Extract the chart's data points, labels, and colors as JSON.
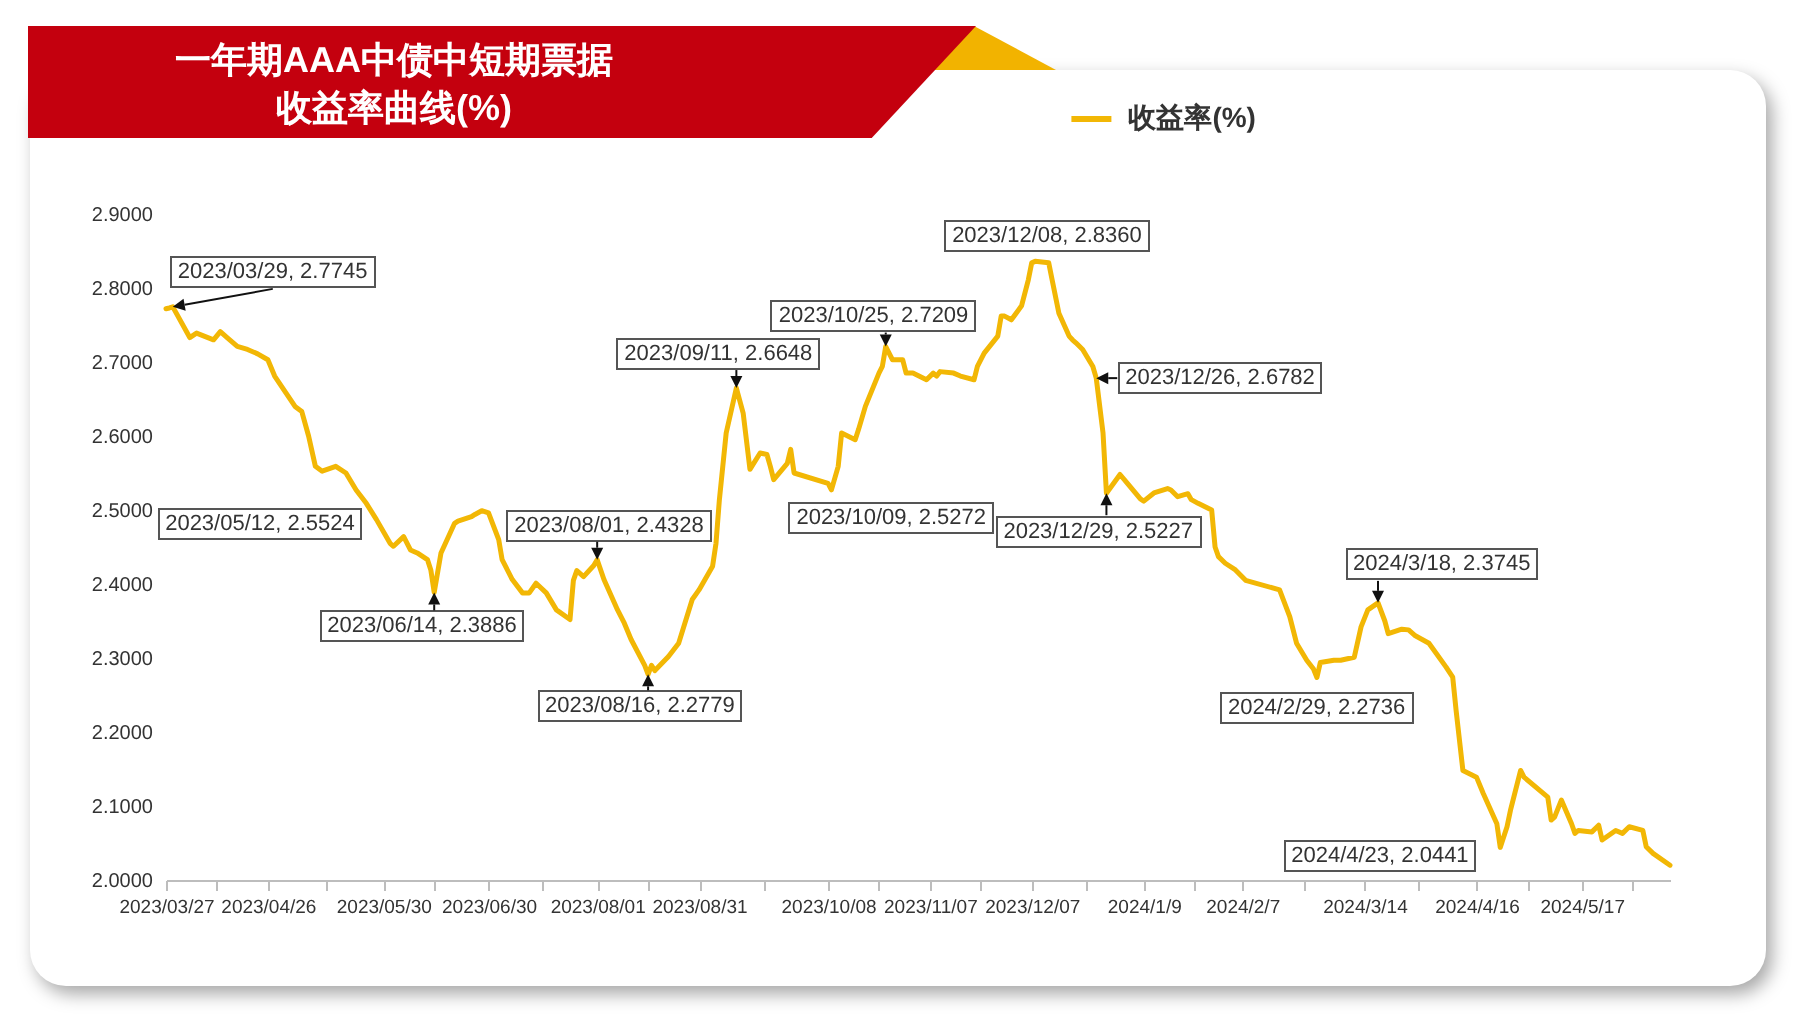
{
  "chart_data": {
    "type": "line",
    "title": "一年期AAA中债中短期票据收益率曲线(%)",
    "x": [
      "2023-03-27",
      "2023-03-28",
      "2023-03-29",
      "2023-04-03",
      "2023-04-05",
      "2023-04-10",
      "2023-04-12",
      "2023-04-14",
      "2023-04-17",
      "2023-04-20",
      "2023-04-23",
      "2023-04-26",
      "2023-04-28",
      "2023-05-04",
      "2023-05-06",
      "2023-05-08",
      "2023-05-10",
      "2023-05-12",
      "2023-05-16",
      "2023-05-19",
      "2023-05-22",
      "2023-05-25",
      "2023-05-28",
      "2023-06-01",
      "2023-06-02",
      "2023-06-05",
      "2023-06-07",
      "2023-06-09",
      "2023-06-12",
      "2023-06-13",
      "2023-06-14",
      "2023-06-16",
      "2023-06-20",
      "2023-06-21",
      "2023-06-25",
      "2023-06-26",
      "2023-06-28",
      "2023-06-30",
      "2023-07-03",
      "2023-07-04",
      "2023-07-07",
      "2023-07-10",
      "2023-07-12",
      "2023-07-14",
      "2023-07-17",
      "2023-07-20",
      "2023-07-24",
      "2023-07-25",
      "2023-07-26",
      "2023-07-28",
      "2023-07-31",
      "2023-08-01",
      "2023-08-03",
      "2023-08-07",
      "2023-08-09",
      "2023-08-11",
      "2023-08-15",
      "2023-08-16",
      "2023-08-17",
      "2023-08-18",
      "2023-08-22",
      "2023-08-25",
      "2023-08-29",
      "2023-08-31",
      "2023-09-04",
      "2023-09-05",
      "2023-09-06",
      "2023-09-08",
      "2023-09-11",
      "2023-09-13",
      "2023-09-15",
      "2023-09-18",
      "2023-09-20",
      "2023-09-21",
      "2023-09-22",
      "2023-09-26",
      "2023-09-27",
      "2023-09-28",
      "2023-10-08",
      "2023-10-09",
      "2023-10-11",
      "2023-10-12",
      "2023-10-16",
      "2023-10-17",
      "2023-10-19",
      "2023-10-23",
      "2023-10-24",
      "2023-10-25",
      "2023-10-27",
      "2023-10-30",
      "2023-10-31",
      "2023-11-02",
      "2023-11-06",
      "2023-11-08",
      "2023-11-09",
      "2023-11-10",
      "2023-11-14",
      "2023-11-16",
      "2023-11-20",
      "2023-11-21",
      "2023-11-23",
      "2023-11-27",
      "2023-11-28",
      "2023-11-29",
      "2023-12-01",
      "2023-12-04",
      "2023-12-06",
      "2023-12-07",
      "2023-12-08",
      "2023-12-12",
      "2023-12-13",
      "2023-12-15",
      "2023-12-18",
      "2023-12-19",
      "2023-12-20",
      "2023-12-22",
      "2023-12-25",
      "2023-12-26",
      "2023-12-28",
      "2023-12-29",
      "2024-01-02",
      "2024-01-04",
      "2024-01-08",
      "2024-01-09",
      "2024-01-12",
      "2024-01-16",
      "2024-01-17",
      "2024-01-19",
      "2024-01-22",
      "2024-01-23",
      "2024-01-25",
      "2024-01-29",
      "2024-01-30",
      "2024-01-31",
      "2024-02-02",
      "2024-02-05",
      "2024-02-08",
      "2024-02-18",
      "2024-02-21",
      "2024-02-23",
      "2024-02-26",
      "2024-02-28",
      "2024-02-29",
      "2024-03-01",
      "2024-03-05",
      "2024-03-07",
      "2024-03-11",
      "2024-03-13",
      "2024-03-15",
      "2024-03-18",
      "2024-03-20",
      "2024-03-21",
      "2024-03-25",
      "2024-03-27",
      "2024-03-29",
      "2024-04-02",
      "2024-04-07",
      "2024-04-09",
      "2024-04-10",
      "2024-04-12",
      "2024-04-16",
      "2024-04-18",
      "2024-04-22",
      "2024-04-23",
      "2024-04-25",
      "2024-04-26",
      "2024-04-29",
      "2024-04-30",
      "2024-05-07",
      "2024-05-08",
      "2024-05-09",
      "2024-05-11",
      "2024-05-14",
      "2024-05-15",
      "2024-05-16",
      "2024-05-20",
      "2024-05-22",
      "2024-05-23",
      "2024-05-27",
      "2024-05-29",
      "2024-05-31",
      "2024-06-04",
      "2024-06-05",
      "2024-06-07",
      "2024-06-12"
    ],
    "series": [
      {
        "name": "收益率(%)",
        "color": "#f2b705",
        "values": [
          2.772,
          2.773,
          2.7745,
          2.733,
          2.739,
          2.73,
          2.741,
          2.733,
          2.721,
          2.717,
          2.711,
          2.703,
          2.681,
          2.64,
          2.633,
          2.6,
          2.559,
          2.5524,
          2.559,
          2.55,
          2.527,
          2.509,
          2.487,
          2.455,
          2.451,
          2.464,
          2.446,
          2.442,
          2.433,
          2.419,
          2.3886,
          2.442,
          2.482,
          2.485,
          2.491,
          2.494,
          2.499,
          2.496,
          2.46,
          2.433,
          2.406,
          2.388,
          2.388,
          2.401,
          2.388,
          2.365,
          2.352,
          2.405,
          2.418,
          2.41,
          2.425,
          2.4328,
          2.406,
          2.365,
          2.347,
          2.325,
          2.29,
          2.2779,
          2.29,
          2.283,
          2.302,
          2.32,
          2.379,
          2.392,
          2.424,
          2.455,
          2.514,
          2.604,
          2.6648,
          2.631,
          2.555,
          2.577,
          2.575,
          2.559,
          2.541,
          2.563,
          2.582,
          2.55,
          2.536,
          2.5272,
          2.559,
          2.604,
          2.595,
          2.609,
          2.64,
          2.685,
          2.694,
          2.7209,
          2.703,
          2.703,
          2.685,
          2.685,
          2.676,
          2.685,
          2.681,
          2.687,
          2.685,
          2.681,
          2.676,
          2.694,
          2.712,
          2.735,
          2.762,
          2.762,
          2.757,
          2.776,
          2.811,
          2.834,
          2.836,
          2.834,
          2.811,
          2.766,
          2.735,
          2.73,
          2.726,
          2.717,
          2.694,
          2.6782,
          2.604,
          2.5227,
          2.548,
          2.537,
          2.515,
          2.512,
          2.523,
          2.529,
          2.527,
          2.518,
          2.522,
          2.514,
          2.509,
          2.5,
          2.45,
          2.437,
          2.428,
          2.419,
          2.405,
          2.392,
          2.356,
          2.32,
          2.297,
          2.285,
          2.2736,
          2.294,
          2.297,
          2.297,
          2.301,
          2.342,
          2.365,
          2.3745,
          2.35,
          2.333,
          2.339,
          2.338,
          2.33,
          2.32,
          2.288,
          2.274,
          2.229,
          2.148,
          2.139,
          2.117,
          2.076,
          2.0441,
          2.072,
          2.094,
          2.148,
          2.139,
          2.112,
          2.081,
          2.085,
          2.108,
          2.076,
          2.063,
          2.067,
          2.065,
          2.074,
          2.054,
          2.067,
          2.063,
          2.072,
          2.067,
          2.045,
          2.036,
          2.02
        ]
      }
    ],
    "xlim": [
      "2023-03-27",
      "2024-06-12"
    ],
    "xticks": [
      {
        "value": "2023-03-27",
        "label": "2023/03/27"
      },
      {
        "value": "2023-04-11",
        "label": null
      },
      {
        "value": "2023-04-26",
        "label": "2023/04/26"
      },
      {
        "value": "2023-05-13",
        "label": null
      },
      {
        "value": "2023-05-30",
        "label": "2023/05/30"
      },
      {
        "value": "2023-06-14",
        "label": null
      },
      {
        "value": "2023-06-30",
        "label": "2023/06/30"
      },
      {
        "value": "2023-07-16",
        "label": null
      },
      {
        "value": "2023-08-01",
        "label": "2023/08/01"
      },
      {
        "value": "2023-08-16",
        "label": null
      },
      {
        "value": "2023-08-31",
        "label": "2023/08/31"
      },
      {
        "value": "2023-09-19",
        "label": null
      },
      {
        "value": "2023-10-08",
        "label": "2023/10/08"
      },
      {
        "value": "2023-10-23",
        "label": null
      },
      {
        "value": "2023-11-07",
        "label": "2023/11/07"
      },
      {
        "value": "2023-11-22",
        "label": null
      },
      {
        "value": "2023-12-07",
        "label": "2023/12/07"
      },
      {
        "value": "2023-12-23",
        "label": null
      },
      {
        "value": "2024-01-09",
        "label": "2024/1/9"
      },
      {
        "value": "2024-01-24",
        "label": null
      },
      {
        "value": "2024-02-07",
        "label": "2024/2/7"
      },
      {
        "value": "2024-02-25",
        "label": null
      },
      {
        "value": "2024-03-14",
        "label": "2024/3/14"
      },
      {
        "value": "2024-03-30",
        "label": null
      },
      {
        "value": "2024-04-16",
        "label": "2024/4/16"
      },
      {
        "value": "2024-05-01",
        "label": null
      },
      {
        "value": "2024-05-17",
        "label": "2024/5/17"
      },
      {
        "value": "2024-06-01",
        "label": null
      }
    ],
    "ylim": [
      2.0,
      2.9
    ],
    "yticks": [
      {
        "value": 2.0,
        "label": "2.0000"
      },
      {
        "value": 2.1,
        "label": "2.1000"
      },
      {
        "value": 2.2,
        "label": "2.2000"
      },
      {
        "value": 2.3,
        "label": "2.3000"
      },
      {
        "value": 2.4,
        "label": "2.4000"
      },
      {
        "value": 2.5,
        "label": "2.5000"
      },
      {
        "value": 2.6,
        "label": "2.6000"
      },
      {
        "value": 2.7,
        "label": "2.7000"
      },
      {
        "value": 2.8,
        "label": "2.8000"
      },
      {
        "value": 2.9,
        "label": "2.9000"
      }
    ],
    "legend": "top",
    "annotations": [
      {
        "text": "2023/03/29, 2.7745",
        "x": "2023-03-29",
        "y": 2.7745
      },
      {
        "text": "2023/05/12, 2.5524",
        "x": "2023-05-12",
        "y": 2.5524
      },
      {
        "text": "2023/06/14, 2.3886",
        "x": "2023-06-14",
        "y": 2.3886
      },
      {
        "text": "2023/08/01, 2.4328",
        "x": "2023-08-01",
        "y": 2.4328
      },
      {
        "text": "2023/08/16, 2.2779",
        "x": "2023-08-16",
        "y": 2.2779
      },
      {
        "text": "2023/09/11, 2.6648",
        "x": "2023-09-11",
        "y": 2.6648
      },
      {
        "text": "2023/10/09, 2.5272",
        "x": "2023-10-09",
        "y": 2.5272
      },
      {
        "text": "2023/10/25, 2.7209",
        "x": "2023-10-25",
        "y": 2.7209
      },
      {
        "text": "2023/12/08, 2.8360",
        "x": "2023-12-08",
        "y": 2.836
      },
      {
        "text": "2023/12/26, 2.6782",
        "x": "2023-12-26",
        "y": 2.6782
      },
      {
        "text": "2023/12/29, 2.5227",
        "x": "2023-12-29",
        "y": 2.5227
      },
      {
        "text": "2024/2/29, 2.2736",
        "x": "2024-02-29",
        "y": 2.2736
      },
      {
        "text": "2024/3/18, 2.3745",
        "x": "2024-03-18",
        "y": 2.3745
      },
      {
        "text": "2024/4/23, 2.0441",
        "x": "2024-04-23",
        "y": 2.0441
      }
    ]
  }
}
